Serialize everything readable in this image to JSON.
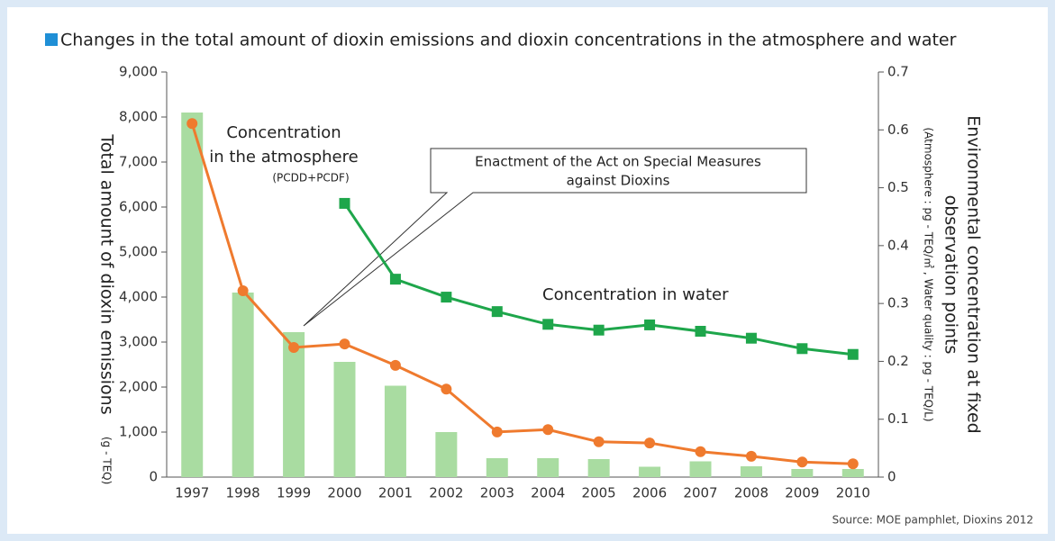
{
  "chart_data": {
    "type": "bar",
    "title": "Changes in the total amount of dioxin emissions and dioxin concentrations in the atmosphere and water",
    "y_label": "Total amount of dioxin emissions",
    "y_unit": "(g - TEQ)",
    "y2_label": [
      "Environmental concentration at fixed",
      "observation points"
    ],
    "y2_unit": "(Atmosphere : pg - TEQ/㎥ , Water quality : pg - TEQ/L)",
    "categories": [
      "1997",
      "1998",
      "1999",
      "2000",
      "2001",
      "2002",
      "2003",
      "2004",
      "2005",
      "2006",
      "2007",
      "2008",
      "2009",
      "2010"
    ],
    "series": [
      {
        "name": "Total amount of dioxin emissions",
        "color": "#a9dca1",
        "axis": "y",
        "values": [
          8100,
          4100,
          3220,
          2560,
          2030,
          1000,
          420,
          420,
          400,
          230,
          350,
          240,
          180,
          180
        ]
      },
      {
        "name": "Concentration in the atmosphere",
        "color": "#ef7a2e",
        "axis": "y2",
        "marker": "circle",
        "values": [
          0.611,
          0.322,
          0.224,
          0.23,
          0.193,
          0.152,
          0.078,
          0.082,
          0.061,
          0.059,
          0.044,
          0.036,
          0.026,
          0.023
        ]
      },
      {
        "name": "Concentration in water",
        "color": "#1ea64b",
        "axis": "y2",
        "marker": "square",
        "values": [
          null,
          null,
          null,
          0.473,
          0.342,
          0.311,
          0.286,
          0.264,
          0.254,
          0.263,
          0.252,
          0.24,
          0.222,
          0.212
        ]
      }
    ],
    "ylim": [
      0,
      9000
    ],
    "yticks": [
      0,
      {
        "value": 1000,
        "label": "1,000"
      },
      {
        "value": 2000,
        "label": "2,000"
      },
      {
        "value": 3000,
        "label": "3,000"
      },
      {
        "value": 4000,
        "label": "4,000"
      },
      {
        "value": 5000,
        "label": "5,000"
      },
      {
        "value": 6000,
        "label": "6,000"
      },
      {
        "value": 7000,
        "label": "7,000"
      },
      {
        "value": 8000,
        "label": "8,000"
      },
      {
        "value": 9000,
        "label": "9,000"
      }
    ],
    "y2lim": [
      0,
      0.7
    ],
    "y2ticks": [
      0,
      0.1,
      0.2,
      0.3,
      0.4,
      0.5,
      0.6,
      0.7
    ],
    "annotations": {
      "atmosphere": [
        "Concentration",
        "in the atmosphere",
        "(PCDD+PCDF)"
      ],
      "act": [
        "Enactment of the Act on Special Measures",
        "against Dioxins"
      ],
      "water": "Concentration in water"
    },
    "source": "Source: MOE pamphlet, Dioxins 2012"
  }
}
